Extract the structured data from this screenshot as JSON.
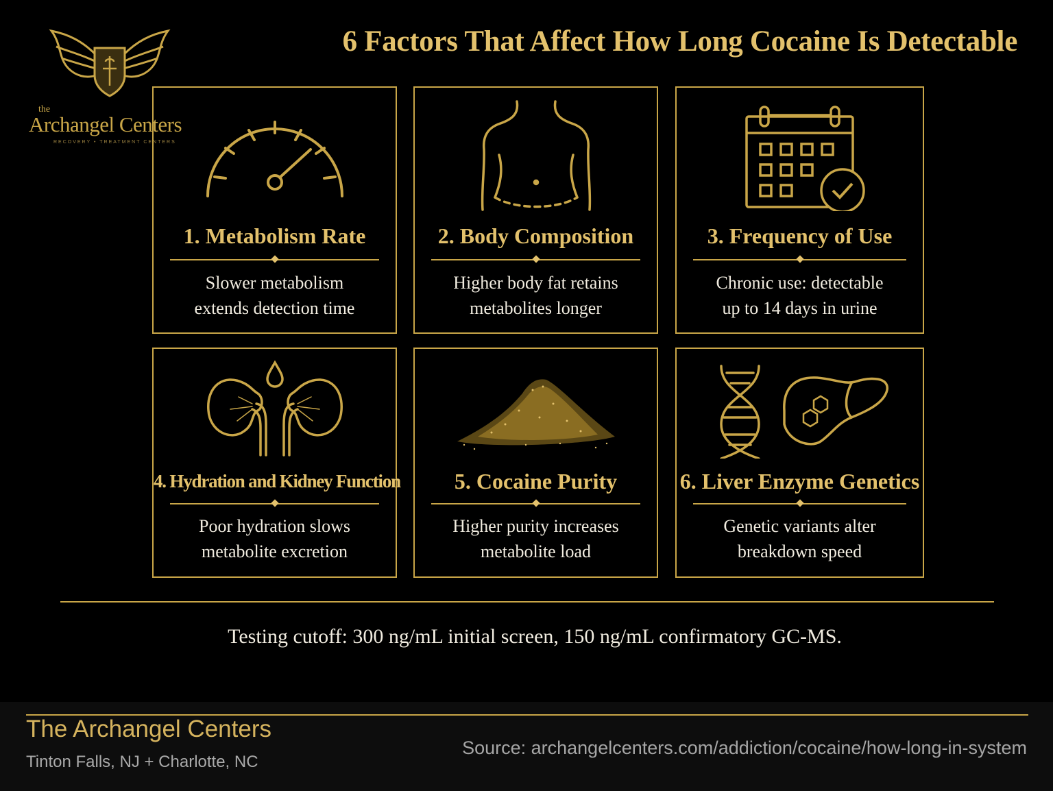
{
  "header": {
    "title": "6 Factors That Affect How Long Cocaine Is Detectable"
  },
  "logo": {
    "the": "the",
    "name": "Archangel Centers",
    "tagline": "RECOVERY • TREATMENT CENTERS"
  },
  "factors": [
    {
      "title": "1. Metabolism Rate",
      "desc_line1": "Slower metabolism",
      "desc_line2": "extends detection time",
      "icon": "speedometer-icon"
    },
    {
      "title": "2. Body Composition",
      "desc_line1": "Higher body fat retains",
      "desc_line2": "metabolites longer",
      "icon": "body-torso-icon"
    },
    {
      "title": "3. Frequency of Use",
      "desc_line1": "Chronic use: detectable",
      "desc_line2": "up to 14 days in urine",
      "icon": "calendar-check-icon"
    },
    {
      "title": "4. Hydration and Kidney Function",
      "desc_line1": "Poor hydration slows",
      "desc_line2": "metabolite excretion",
      "icon": "kidneys-icon"
    },
    {
      "title": "5. Cocaine Purity",
      "desc_line1": "Higher purity increases",
      "desc_line2": "metabolite load",
      "icon": "powder-pile-icon"
    },
    {
      "title": "6. Liver Enzyme Genetics",
      "desc_line1": "Genetic variants alter",
      "desc_line2": "breakdown speed",
      "icon": "dna-liver-icon"
    }
  ],
  "note": "Testing cutoff: 300 ng/mL initial screen, 150 ng/mL confirmatory GC-MS.",
  "footer": {
    "name": "The Archangel Centers",
    "location": "Tinton Falls, NJ + Charlotte, NC",
    "source": "Source: archangelcenters.com/addiction/cocaine/how-long-in-system"
  },
  "colors": {
    "gold": "#c9a648",
    "gold_text": "#e3c16c",
    "background": "#000000",
    "body_text": "#f1ece0"
  }
}
